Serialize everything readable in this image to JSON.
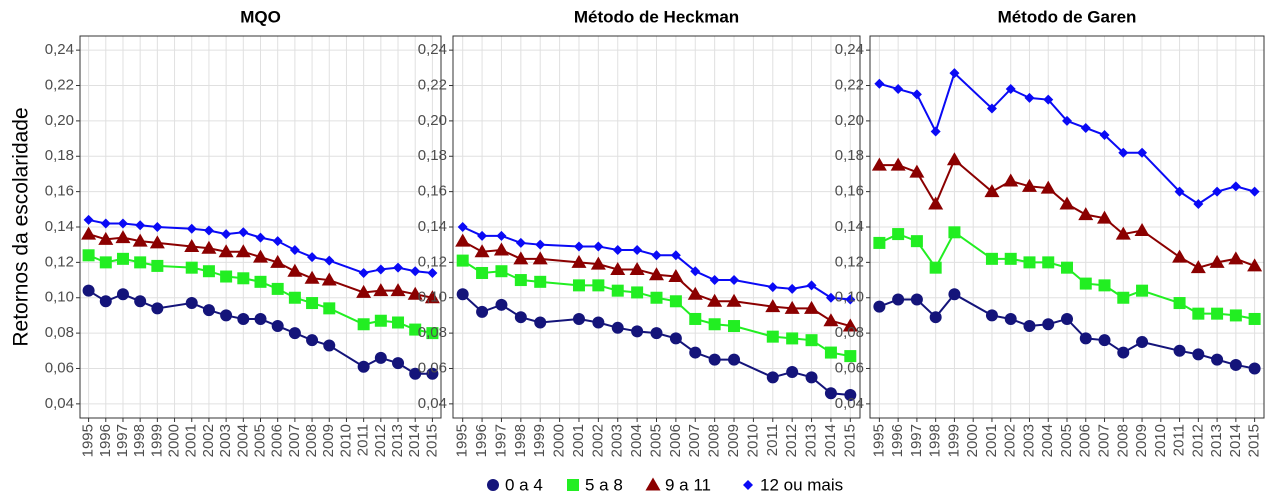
{
  "chart_data": [
    {
      "type": "line",
      "title": "MQO",
      "ylabel": "Retornos da escolaridade",
      "x": [
        1995,
        1996,
        1997,
        1998,
        1999,
        2001,
        2002,
        2003,
        2004,
        2005,
        2006,
        2007,
        2008,
        2009,
        2011,
        2012,
        2013,
        2014,
        2015
      ],
      "xlim": [
        1994.5,
        2015.5
      ],
      "xticks": [
        1995,
        1996,
        1997,
        1998,
        1999,
        2000,
        2001,
        2002,
        2003,
        2004,
        2005,
        2006,
        2007,
        2008,
        2009,
        2010,
        2011,
        2012,
        2013,
        2014,
        2015
      ],
      "ylim": [
        0.032,
        0.248
      ],
      "yticks": [
        {
          "value": 0.04,
          "label": "0,04"
        },
        {
          "value": 0.06,
          "label": "0,06"
        },
        {
          "value": 0.08,
          "label": "0,08"
        },
        {
          "value": 0.1,
          "label": "0,10"
        },
        {
          "value": 0.12,
          "label": "0,12"
        },
        {
          "value": 0.14,
          "label": "0,14"
        },
        {
          "value": 0.16,
          "label": "0,16"
        },
        {
          "value": 0.18,
          "label": "0,18"
        },
        {
          "value": 0.2,
          "label": "0,20"
        },
        {
          "value": 0.22,
          "label": "0,22"
        },
        {
          "value": 0.24,
          "label": "0,24"
        }
      ],
      "grid": true,
      "series": [
        {
          "name": "0 a 4",
          "color": "#14147a",
          "marker": "circle",
          "values": [
            0.104,
            0.098,
            0.102,
            0.098,
            0.094,
            0.097,
            0.093,
            0.09,
            0.088,
            0.088,
            0.084,
            0.08,
            0.076,
            0.073,
            0.061,
            0.066,
            0.063,
            0.057,
            0.057
          ]
        },
        {
          "name": "5 a 8",
          "color": "#22ee22",
          "marker": "square",
          "values": [
            0.124,
            0.12,
            0.122,
            0.12,
            0.118,
            0.117,
            0.115,
            0.112,
            0.111,
            0.109,
            0.105,
            0.1,
            0.097,
            0.094,
            0.085,
            0.087,
            0.086,
            0.082,
            0.08
          ]
        },
        {
          "name": "9 a 11",
          "color": "#8b0000",
          "marker": "triangle",
          "values": [
            0.136,
            0.133,
            0.134,
            0.132,
            0.131,
            0.129,
            0.128,
            0.126,
            0.126,
            0.123,
            0.12,
            0.115,
            0.111,
            0.11,
            0.103,
            0.104,
            0.104,
            0.102,
            0.1
          ]
        },
        {
          "name": "12 ou mais",
          "color": "#0a0af5",
          "marker": "diamond",
          "values": [
            0.144,
            0.142,
            0.142,
            0.141,
            0.14,
            0.139,
            0.138,
            0.136,
            0.137,
            0.134,
            0.132,
            0.127,
            0.123,
            0.121,
            0.114,
            0.116,
            0.117,
            0.115,
            0.114
          ]
        }
      ]
    },
    {
      "type": "line",
      "title": "Método de Heckman",
      "x": [
        1995,
        1996,
        1997,
        1998,
        1999,
        2001,
        2002,
        2003,
        2004,
        2005,
        2006,
        2007,
        2008,
        2009,
        2011,
        2012,
        2013,
        2014,
        2015
      ],
      "xlim": [
        1994.5,
        2015.5
      ],
      "xticks": [
        1995,
        1996,
        1997,
        1998,
        1999,
        2000,
        2001,
        2002,
        2003,
        2004,
        2005,
        2006,
        2007,
        2008,
        2009,
        2010,
        2011,
        2012,
        2013,
        2014,
        2015
      ],
      "ylim": [
        0.032,
        0.248
      ],
      "yticks": [
        {
          "value": 0.04,
          "label": "0,04"
        },
        {
          "value": 0.06,
          "label": "0,06"
        },
        {
          "value": 0.08,
          "label": "0,08"
        },
        {
          "value": 0.1,
          "label": "0,10"
        },
        {
          "value": 0.12,
          "label": "0,12"
        },
        {
          "value": 0.14,
          "label": "0,14"
        },
        {
          "value": 0.16,
          "label": "0,16"
        },
        {
          "value": 0.18,
          "label": "0,18"
        },
        {
          "value": 0.2,
          "label": "0,20"
        },
        {
          "value": 0.22,
          "label": "0,22"
        },
        {
          "value": 0.24,
          "label": "0,24"
        }
      ],
      "grid": true,
      "series": [
        {
          "name": "0 a 4",
          "color": "#14147a",
          "marker": "circle",
          "values": [
            0.102,
            0.092,
            0.096,
            0.089,
            0.086,
            0.088,
            0.086,
            0.083,
            0.081,
            0.08,
            0.077,
            0.069,
            0.065,
            0.065,
            0.055,
            0.058,
            0.055,
            0.046,
            0.045
          ]
        },
        {
          "name": "5 a 8",
          "color": "#22ee22",
          "marker": "square",
          "values": [
            0.121,
            0.114,
            0.115,
            0.11,
            0.109,
            0.107,
            0.107,
            0.104,
            0.103,
            0.1,
            0.098,
            0.088,
            0.085,
            0.084,
            0.078,
            0.077,
            0.076,
            0.069,
            0.067
          ]
        },
        {
          "name": "9 a 11",
          "color": "#8b0000",
          "marker": "triangle",
          "values": [
            0.132,
            0.126,
            0.127,
            0.122,
            0.122,
            0.12,
            0.119,
            0.116,
            0.116,
            0.113,
            0.112,
            0.102,
            0.098,
            0.098,
            0.095,
            0.094,
            0.094,
            0.087,
            0.084
          ]
        },
        {
          "name": "12 ou mais",
          "color": "#0a0af5",
          "marker": "diamond",
          "values": [
            0.14,
            0.135,
            0.135,
            0.131,
            0.13,
            0.129,
            0.129,
            0.127,
            0.127,
            0.124,
            0.124,
            0.115,
            0.11,
            0.11,
            0.106,
            0.105,
            0.107,
            0.1,
            0.099
          ]
        }
      ]
    },
    {
      "type": "line",
      "title": "Método de Garen",
      "x": [
        1995,
        1996,
        1997,
        1998,
        1999,
        2001,
        2002,
        2003,
        2004,
        2005,
        2006,
        2007,
        2008,
        2009,
        2011,
        2012,
        2013,
        2014,
        2015
      ],
      "xlim": [
        1994.5,
        2015.5
      ],
      "xticks": [
        1995,
        1996,
        1997,
        1998,
        1999,
        2000,
        2001,
        2002,
        2003,
        2004,
        2005,
        2006,
        2007,
        2008,
        2009,
        2010,
        2011,
        2012,
        2013,
        2014,
        2015
      ],
      "ylim": [
        0.032,
        0.248
      ],
      "yticks": [
        {
          "value": 0.04,
          "label": "0,04"
        },
        {
          "value": 0.06,
          "label": "0,06"
        },
        {
          "value": 0.08,
          "label": "0,08"
        },
        {
          "value": 0.1,
          "label": "0,10"
        },
        {
          "value": 0.12,
          "label": "0,12"
        },
        {
          "value": 0.14,
          "label": "0,14"
        },
        {
          "value": 0.16,
          "label": "0,16"
        },
        {
          "value": 0.18,
          "label": "0,18"
        },
        {
          "value": 0.2,
          "label": "0,20"
        },
        {
          "value": 0.22,
          "label": "0,22"
        },
        {
          "value": 0.24,
          "label": "0,24"
        }
      ],
      "grid": true,
      "series": [
        {
          "name": "0 a 4",
          "color": "#14147a",
          "marker": "circle",
          "values": [
            0.095,
            0.099,
            0.099,
            0.089,
            0.102,
            0.09,
            0.088,
            0.084,
            0.085,
            0.088,
            0.077,
            0.076,
            0.069,
            0.075,
            0.07,
            0.068,
            0.065,
            0.062,
            0.06
          ]
        },
        {
          "name": "5 a 8",
          "color": "#22ee22",
          "marker": "square",
          "values": [
            0.131,
            0.136,
            0.132,
            0.117,
            0.137,
            0.122,
            0.122,
            0.12,
            0.12,
            0.117,
            0.108,
            0.107,
            0.1,
            0.104,
            0.097,
            0.091,
            0.091,
            0.09,
            0.088
          ]
        },
        {
          "name": "9 a 11",
          "color": "#8b0000",
          "marker": "triangle",
          "values": [
            0.175,
            0.175,
            0.171,
            0.153,
            0.178,
            0.16,
            0.166,
            0.163,
            0.162,
            0.153,
            0.147,
            0.145,
            0.136,
            0.138,
            0.123,
            0.117,
            0.12,
            0.122,
            0.118
          ]
        },
        {
          "name": "12 ou mais",
          "color": "#0a0af5",
          "marker": "diamond",
          "values": [
            0.221,
            0.218,
            0.215,
            0.194,
            0.227,
            0.207,
            0.218,
            0.213,
            0.212,
            0.2,
            0.196,
            0.192,
            0.182,
            0.182,
            0.16,
            0.153,
            0.16,
            0.163,
            0.16
          ]
        }
      ]
    }
  ]
}
